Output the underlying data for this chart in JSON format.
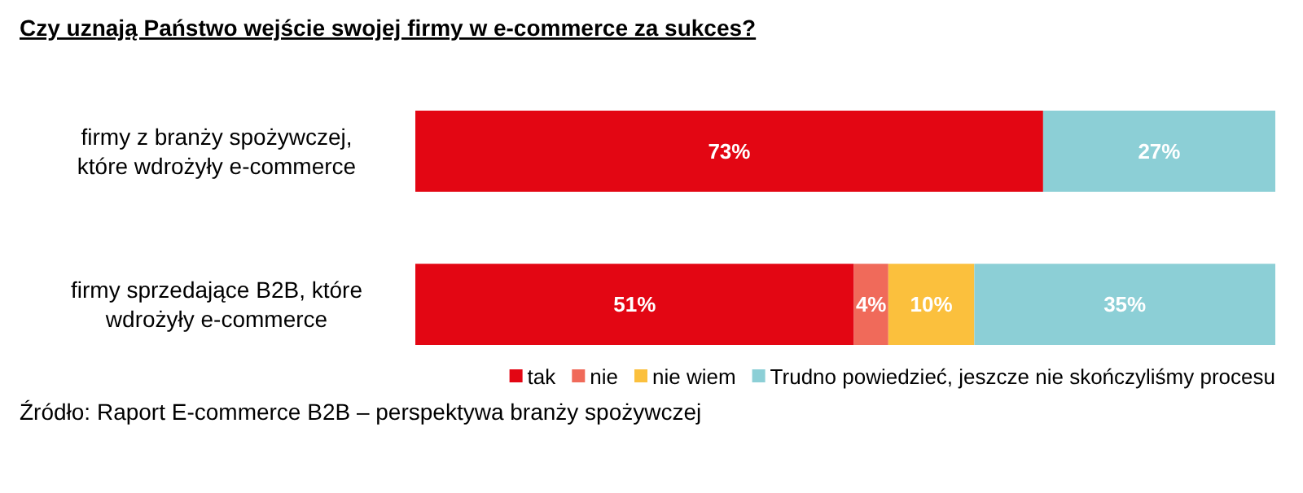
{
  "chart_data": {
    "type": "bar",
    "orientation": "horizontal",
    "stacked": true,
    "title": "Czy uznają Państwo wejście swojej firmy w e-commerce za sukces?",
    "categories": [
      "firmy z branży spożywczej, które wdrożyły e-commerce",
      "firmy sprzedające B2B, które wdrożyły e-commerce"
    ],
    "series": [
      {
        "name": "tak",
        "color": "#e30613",
        "values": [
          73,
          51
        ],
        "value_labels": [
          "73%",
          "51%"
        ]
      },
      {
        "name": "nie",
        "color": "#f06a5a",
        "values": [
          null,
          4
        ],
        "value_labels": [
          null,
          "4%"
        ]
      },
      {
        "name": "nie wiem",
        "color": "#fbc03d",
        "values": [
          null,
          10
        ],
        "value_labels": [
          null,
          "10%"
        ]
      },
      {
        "name": "Trudno powiedzieć, jeszcze nie skończyliśmy procesu",
        "color": "#8ccfd6",
        "values": [
          27,
          35
        ],
        "value_labels": [
          "27%",
          "35%"
        ]
      }
    ],
    "xlim": [
      0,
      100
    ],
    "legend": "bottom",
    "annotations": [
      "Źródło: Raport E-commerce B2B – perspektywa branży spożywczej"
    ]
  }
}
